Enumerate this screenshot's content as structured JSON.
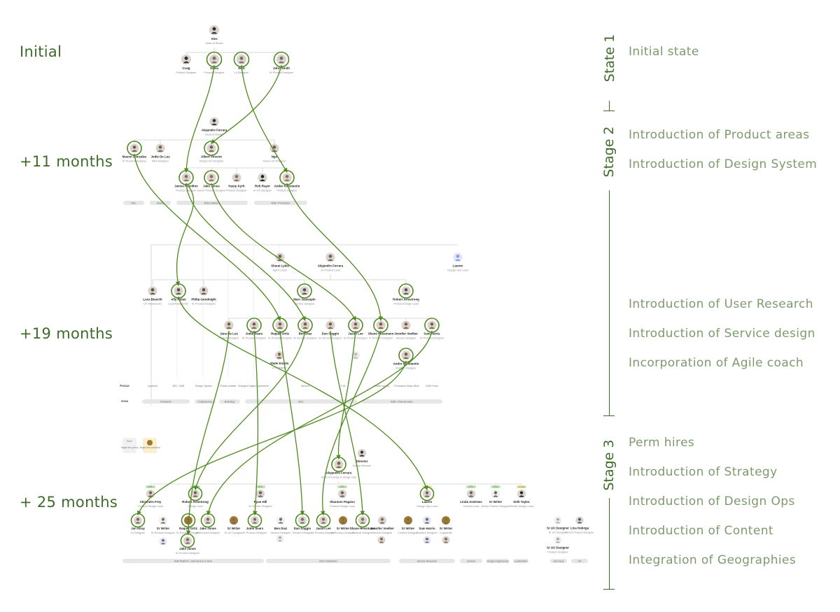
{
  "row_labels": [
    "Initial",
    "+11 months",
    "+19 months",
    "+ 25 months"
  ],
  "stage_labels": [
    "State 1",
    "Stage 2",
    "Stage 3"
  ],
  "notes": {
    "state1": [
      "Initial state"
    ],
    "stage2": [
      "Introduction of Product areas",
      "Introduction of Design System"
    ],
    "stage2b": [
      "Introduction of User Research",
      "Introduction of Service design",
      "Incorporation of Agile coach"
    ],
    "stage3": [
      "Perm hires",
      "Introduction of Strategy",
      "Introduction of Design Ops",
      "Introduction of Content",
      "Integration of Geographies"
    ]
  },
  "org_initial": {
    "head": {
      "name": "Alex",
      "role": "Head of Studio"
    },
    "reports": [
      {
        "name": "Craig",
        "role": "Product Designer"
      },
      {
        "name": "Sonia",
        "role": "Product Designer"
      },
      {
        "name": "Nick",
        "role": "UI Designer"
      },
      {
        "name": "John Smith",
        "role": "Sr Product Designer"
      }
    ]
  },
  "org_11": {
    "head": {
      "name": "Alejandro Ferrara",
      "role": "Head of Design"
    },
    "leads": [
      {
        "name": "Mason Gonzalez",
        "role": "Sr Product Designer"
      },
      {
        "name": "Jodie De Luz",
        "role": "Web Designer"
      },
      {
        "name": "Albert Vincent",
        "role": "Design UX Designer"
      },
      {
        "name": "Ngo",
        "role": "Senior UX Designer"
      }
    ],
    "members": [
      {
        "name": "James Hamilton",
        "role": "Product Designer"
      },
      {
        "name": "Jake Jones",
        "role": "Senior Product Designer"
      },
      {
        "name": "Hasty Kyrh",
        "role": "Product Designer"
      },
      {
        "name": "Rob Rayer",
        "role": "Sr UX Designer"
      },
      {
        "name": "Ander Konstantin",
        "role": "Product Designer"
      }
    ],
    "areas": [
      "DEL",
      "Brand",
      "B2B solutions",
      "B2B / Production"
    ]
  },
  "org_19": {
    "top": [
      {
        "name": "Shaun Lyles",
        "role": "Agile Coach"
      },
      {
        "name": "Alejandro Ferrara",
        "role": "Sr Product Lead"
      },
      {
        "name": "Lauren",
        "role": "Design Ops Lead"
      }
    ],
    "leads": [
      {
        "name": "Luca Bianchi",
        "role": "UX Researcher"
      },
      {
        "name": "Ally Nolan",
        "role": "Lead Researcher"
      },
      {
        "name": "Philip Goodnight",
        "role": "Sr Product Designer"
      },
      {
        "name": "Marc Ganaspin",
        "role": "Service Designer"
      },
      {
        "name": "Robert Armstrong",
        "role": "Product Design Lead"
      }
    ],
    "members": [
      {
        "name": "Jana De Lux",
        "role": "Product Designer"
      },
      {
        "name": "Jodie Sears",
        "role": "Sr Product Designer"
      },
      {
        "name": "Raquel Ortiz",
        "role": "Sr Product Designer"
      },
      {
        "name": "Ben Diaz",
        "role": "Sr Service Designer"
      },
      {
        "name": "Dan Soggio",
        "role": "Sr Service Designer"
      },
      {
        "name": "Jason Lee",
        "role": "Sr Product Designer"
      },
      {
        "name": "Shane Hessmann",
        "role": "Sr Product Designer"
      },
      {
        "name": "Jennifer Voelker",
        "role": "Service Designer"
      },
      {
        "name": "Sam Harris",
        "role": "Sr Product Designer"
      }
    ],
    "extra": [
      {
        "name": "Slade Kondo",
        "role": "UI Designer"
      },
      {
        "name": "Andre Konstantin",
        "role": "Product Designer"
      }
    ],
    "focus_label": "Focus",
    "focus": [
      "Systems",
      "B2C / B2B",
      "Design System",
      "Public website",
      "Changes Digital Experience",
      "Service",
      "CTA",
      "Onsite survey",
      "Production Back office",
      "B2B Portal"
    ],
    "area_label": "Area",
    "areas": [
      "Research",
      "Engineering",
      "Branding",
      "B2C",
      "B2B / Internal sales"
    ]
  },
  "org_25": {
    "legend": [
      {
        "tag": "Perm",
        "label": "Target hire (perm)"
      },
      {
        "tag": "Contract",
        "label": "Target hire (contract)"
      }
    ],
    "head": {
      "name": "Alejandro Ferrara",
      "role": "Head of Design & Design Ops"
    },
    "director": {
      "name": "Director",
      "role": "Design Director"
    },
    "groups": [
      {
        "badge": "PTX",
        "name": "Alejandro Frey",
        "role": "Product Design Lead"
      },
      {
        "badge": "PTX",
        "name": "Robert Armstrong",
        "role": "Design Lead"
      },
      {
        "badge": "PTX",
        "name": "Ryan Hill",
        "role": "Sr Service Designer"
      },
      {
        "badge": "PTX",
        "name": "Shannon Pagano",
        "role": "Product Design Lead"
      },
      {
        "badge": "PTX",
        "name": "Lauren",
        "role": "Design Ops Lead"
      },
      {
        "badge": "PTX",
        "name": "Linda Andrews",
        "role": "Content Lead"
      },
      {
        "badge": "PTX",
        "name": "Sr Writer",
        "role": "Senior Product Designer"
      },
      {
        "badge": "Contract",
        "name": "Seth Taylor",
        "role": "Mobile Design Lead"
      }
    ],
    "members": [
      {
        "name": "Jan Alray",
        "role": "UI Designer"
      },
      {
        "name": "Sr Writer",
        "role": "Sr Product Designer"
      },
      {
        "name": "Raquel Ortiz",
        "role": "Sr Product Designer"
      },
      {
        "name": "Jake Jones",
        "role": "Sr Product Designer"
      },
      {
        "name": "Sr Writer",
        "role": "Sr UX Designer"
      },
      {
        "name": "Jodie Sears",
        "role": "Sr Product Designer"
      },
      {
        "name": "Ben Diaz",
        "role": "Service Designer"
      },
      {
        "name": "Dan Soggio",
        "role": "Service Designer"
      },
      {
        "name": "Jason Lee",
        "role": "Sr Product Designer"
      },
      {
        "name": "Sr Writer",
        "role": "Sr Product Designer"
      },
      {
        "name": "Shane Hessmann",
        "role": "Product Designer"
      },
      {
        "name": "Jennifer Voelker",
        "role": "Service Designer"
      },
      {
        "name": "Sr Writer",
        "role": "Content Designer"
      },
      {
        "name": "Sam Harris",
        "role": "Content Designer"
      },
      {
        "name": "Sr Writer",
        "role": "Copywriter"
      }
    ],
    "geo": [
      {
        "name": "Sr UX Designer",
        "role": "Sr UX Designer"
      },
      {
        "name": "Lina Haboga",
        "role": "Senior Product Designer"
      },
      {
        "name": "Sr UX Designer",
        "role": "Product Designer"
      }
    ],
    "areas": [
      "B2B Platform, Self-service & Tech",
      "B2C Installation",
      "Service Research",
      "Content",
      "Design Engineering",
      "Localization",
      "Germany",
      "UK"
    ]
  },
  "colors": {
    "accent": "#4f8a1e",
    "text_green": "#3f6b2a",
    "note_green": "#7f9a6e",
    "line_grey": "#cfcfcf",
    "pill_grey": "#e6e6e6",
    "badge_green": "#bfe3b3",
    "badge_blue": "#c9dcf5",
    "badge_yellow": "#f3e7a6",
    "contract_brown": "#a07a2a"
  }
}
